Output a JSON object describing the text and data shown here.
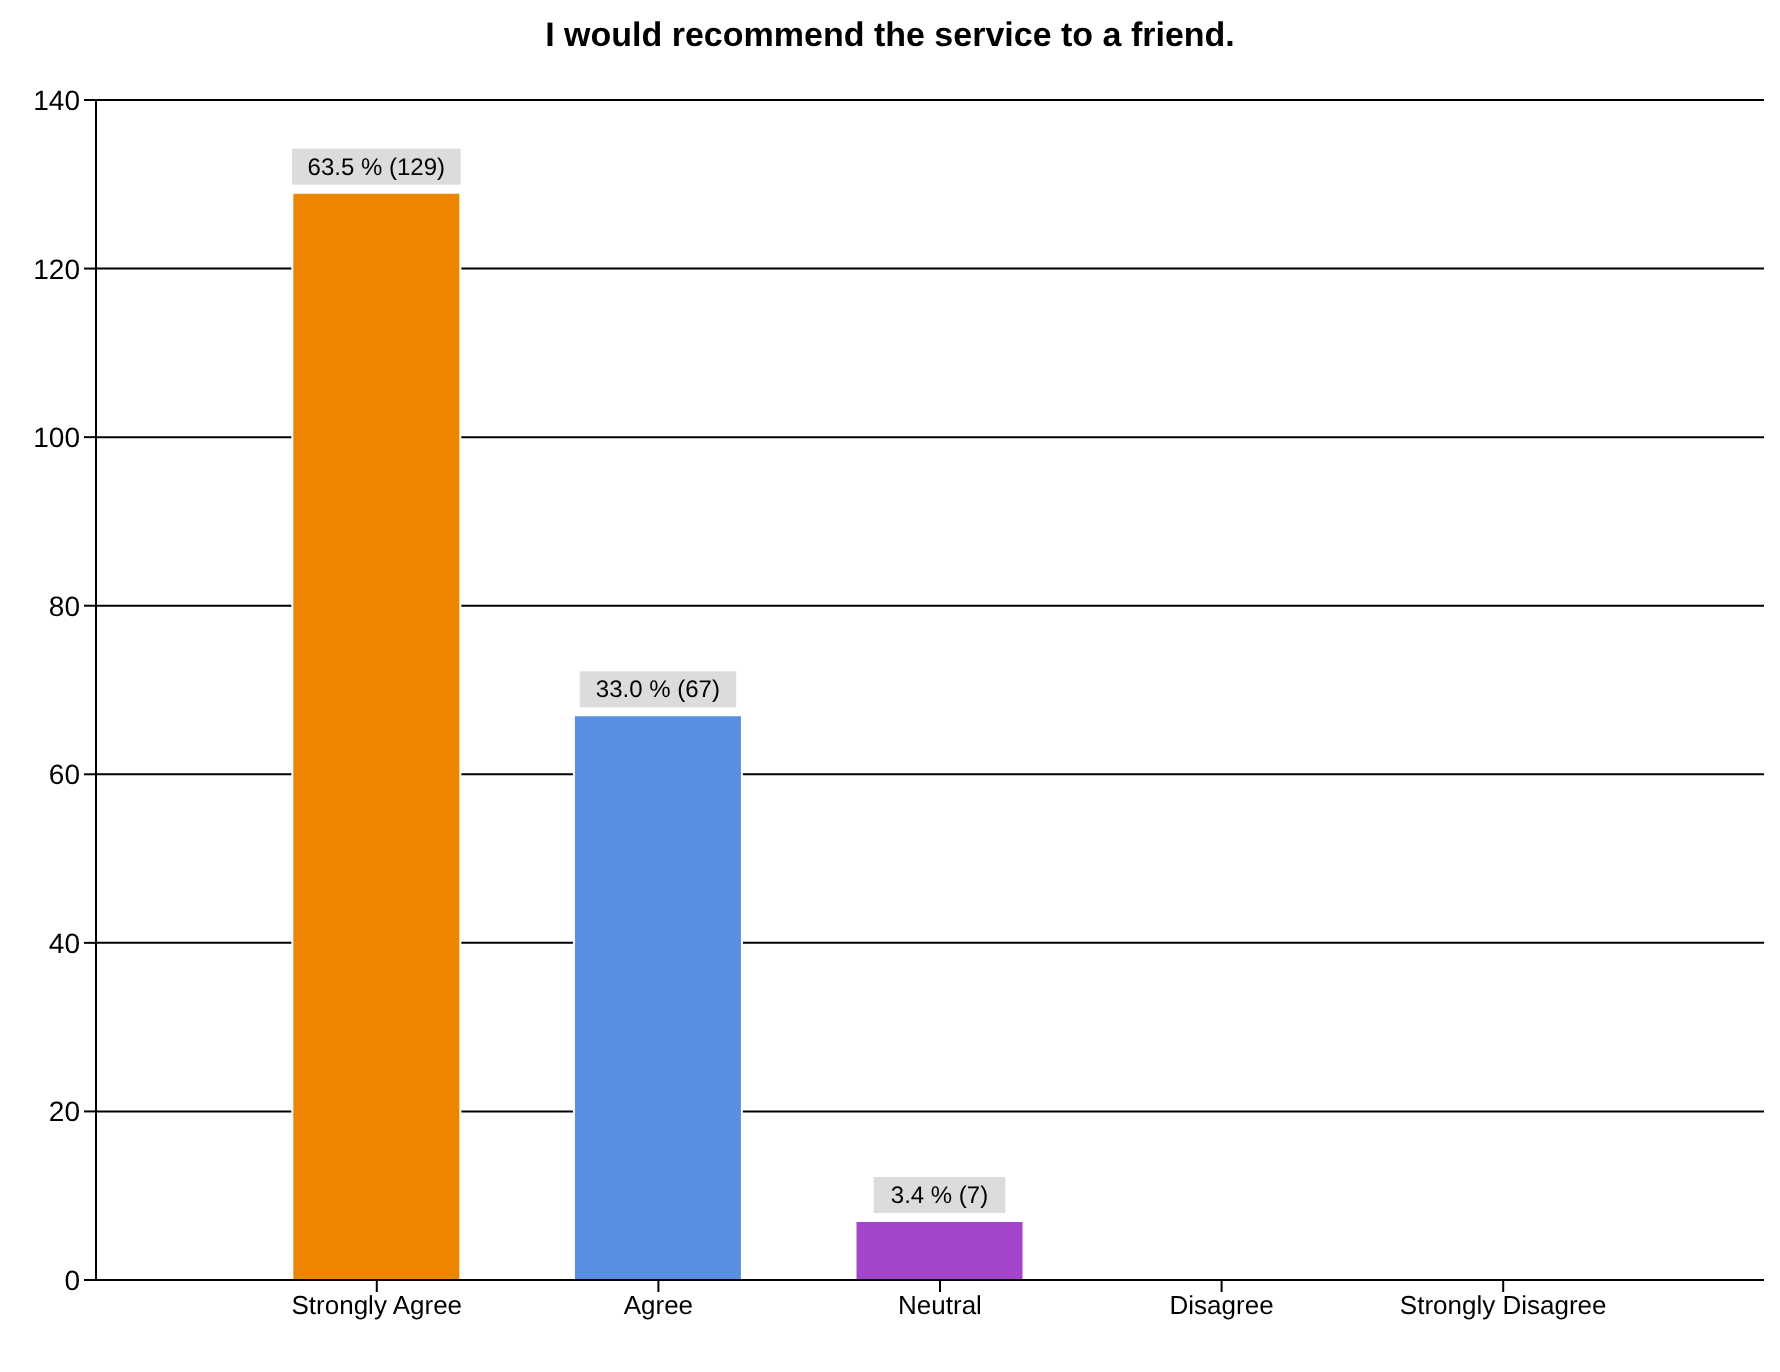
{
  "chart_data": {
    "type": "bar",
    "title": "I would recommend the service to a friend.",
    "categories": [
      "Strongly Agree",
      "Agree",
      "Neutral",
      "Disagree",
      "Strongly Disagree"
    ],
    "values": [
      129,
      67,
      7,
      0,
      0
    ],
    "colors": [
      "#ee8500",
      "#5a8ee0",
      "#a444cc",
      "#888888",
      "#888888"
    ],
    "value_labels": [
      "63.5 % (129)",
      "33.0 % (67)",
      "3.4 % (7)",
      null,
      null
    ],
    "ylim": [
      0,
      140
    ],
    "yticks": [
      0,
      20,
      40,
      60,
      80,
      100,
      120,
      140
    ],
    "grid": "y",
    "legend": false
  }
}
